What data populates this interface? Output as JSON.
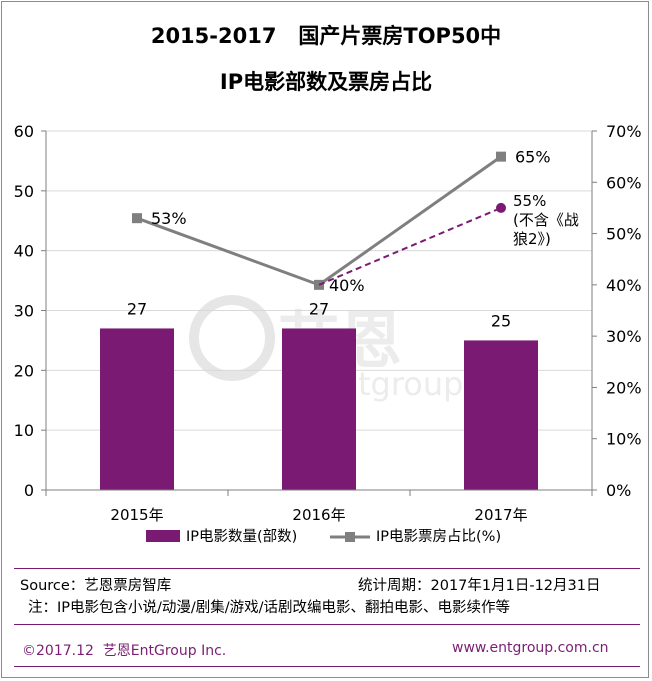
{
  "header": {
    "title_line1": "2015-2017   国产片票房TOP50中",
    "title_line2": "IP电影部数及票房占比"
  },
  "watermark": {
    "brand_cn": "艺恩",
    "brand_en": "entgroup"
  },
  "notes": {
    "source": "Source：艺恩票房智库",
    "period": "统计周期：2017年1月1日-12月31日",
    "remark": "注：IP电影包含小说/动漫/剧集/游戏/话剧改编电影、翻拍电影、电影续作等"
  },
  "footer": {
    "copyright": "©2017.12  艺恩EntGroup Inc.",
    "website": "www.entgroup.com.cn"
  },
  "colors": {
    "bar": "#7b1a73",
    "line": "#7f7f7f",
    "dashed": "#7b1a73",
    "accent_rule": "#7b1a73"
  },
  "chart_data": {
    "type": "bar+line",
    "categories": [
      "2015年",
      "2016年",
      "2017年"
    ],
    "y_left": {
      "min": 0,
      "max": 60,
      "step": 10,
      "ticks": [
        "0",
        "10",
        "20",
        "30",
        "40",
        "50",
        "60"
      ]
    },
    "y_right": {
      "min": 0,
      "max": 70,
      "step": 10,
      "ticks": [
        "0%",
        "10%",
        "20%",
        "30%",
        "40%",
        "50%",
        "60%",
        "70%"
      ]
    },
    "grid": true,
    "legend_position": "bottom",
    "series": [
      {
        "name": "IP电影数量(部数)",
        "type": "bar",
        "axis": "left",
        "values": [
          27,
          27,
          25
        ],
        "labels": [
          "27",
          "27",
          "25"
        ]
      },
      {
        "name": "IP电影票房占比(%)",
        "type": "line",
        "axis": "right",
        "values": [
          53,
          40,
          65
        ],
        "labels": [
          "53%",
          "40%",
          "65%"
        ]
      }
    ],
    "annotation": {
      "from_category": "2016年",
      "from_value": 40,
      "to_category": "2017年",
      "value": 55,
      "label_lines": [
        "55%",
        "(不含《战",
        "狼2》)"
      ]
    }
  }
}
